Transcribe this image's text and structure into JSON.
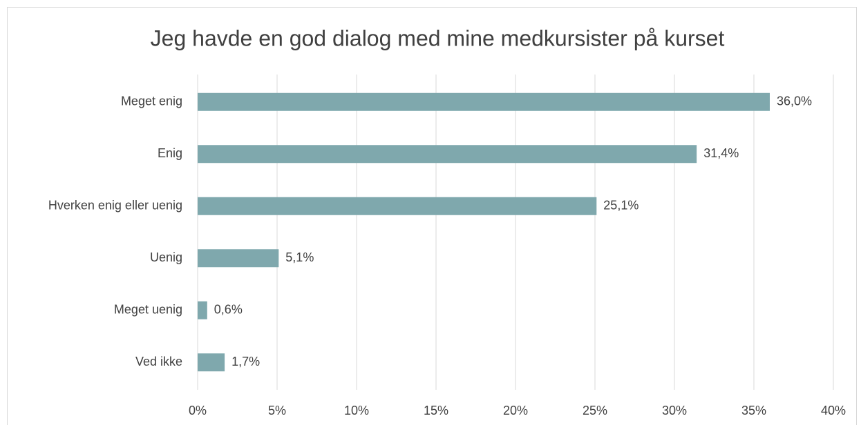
{
  "chart_data": {
    "type": "barh",
    "title": "Jeg havde en god dialog med mine medkursister på kurset",
    "categories": [
      "Meget enig",
      "Enig",
      "Hverken enig eller uenig",
      "Uenig",
      "Meget uenig",
      "Ved ikke"
    ],
    "values": [
      36.0,
      31.4,
      25.1,
      5.1,
      0.6,
      1.7
    ],
    "value_labels": [
      "36,0%",
      "31,4%",
      "25,1%",
      "5,1%",
      "0,6%",
      "1,7%"
    ],
    "color": "#7fa8ad",
    "xlim": [
      0,
      40
    ],
    "xticks": [
      {
        "value": 0,
        "label": "0%"
      },
      {
        "value": 5,
        "label": "5%"
      },
      {
        "value": 10,
        "label": "10%"
      },
      {
        "value": 15,
        "label": "15%"
      },
      {
        "value": 20,
        "label": "20%"
      },
      {
        "value": 25,
        "label": "25%"
      },
      {
        "value": 30,
        "label": "30%"
      },
      {
        "value": 35,
        "label": "35%"
      },
      {
        "value": 40,
        "label": "40%"
      }
    ],
    "grid": true
  }
}
